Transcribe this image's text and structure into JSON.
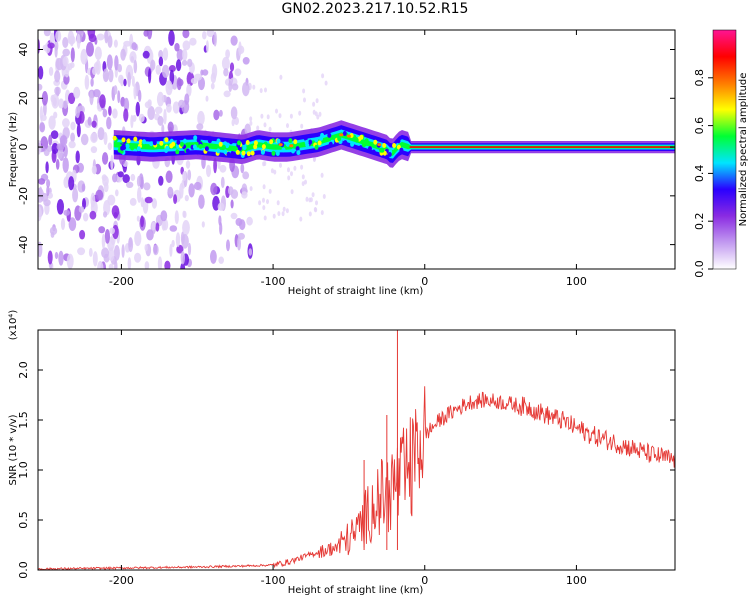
{
  "title": "GN02.2023.217.10.52.R15",
  "chart_data": [
    {
      "type": "heatmap",
      "xlabel": "Height of straight line (km)",
      "ylabel": "Frequency (Hz)",
      "xlim": [
        -255,
        165
      ],
      "ylim": [
        -50,
        48
      ],
      "xticks": [
        -200,
        -100,
        0,
        100
      ],
      "xtick_labels": [
        "-200",
        "-100",
        "0",
        "100"
      ],
      "yticks": [
        40,
        20,
        0,
        -20,
        -40
      ],
      "ytick_labels": [
        "40",
        "20",
        "0",
        "-20",
        "-40"
      ],
      "ridge": {
        "x": [
          -205,
          -180,
          -150,
          -120,
          -110,
          -100,
          -90,
          -80,
          -70,
          -60,
          -55,
          -50,
          -45,
          -40,
          -35,
          -30,
          -25,
          -22,
          -20,
          -18,
          -15,
          -10,
          0,
          50,
          100,
          165
        ],
        "y": [
          1,
          0,
          1,
          -1,
          1,
          0,
          0,
          1,
          2,
          4,
          5,
          4,
          3,
          2,
          1,
          0,
          -1,
          -3,
          -2,
          0,
          1,
          0,
          0,
          0,
          0,
          0
        ]
      },
      "noise_region_x": [
        -255,
        -115
      ],
      "colorbar": {
        "label": "Normalized spectral amplitude",
        "range": [
          0,
          1
        ],
        "ticks": [
          0,
          0.2,
          0.4,
          0.6,
          0.8
        ],
        "tick_labels": [
          "0.0",
          "0.2",
          "0.4",
          "0.6",
          "0.8"
        ],
        "colors": [
          "#ffffff",
          "#c29af0",
          "#8a2be2",
          "#2a00ff",
          "#00e5ff",
          "#00ff33",
          "#ffff00",
          "#ff7a00",
          "#ff0000",
          "#ff1493"
        ]
      },
      "grid": false
    },
    {
      "type": "line",
      "xlabel": "Height of straight line (km)",
      "ylabel": "SNR (10 * v/v)",
      "y_multiplier_label": "(x10⁴)",
      "xlim": [
        -255,
        165
      ],
      "ylim": [
        0,
        2.4
      ],
      "xticks": [
        -200,
        -100,
        0,
        100
      ],
      "xtick_labels": [
        "-200",
        "-100",
        "0",
        "100"
      ],
      "yticks": [
        0,
        0.5,
        1.0,
        1.5,
        2.0
      ],
      "ytick_labels": [
        "0.0",
        "0.5",
        "1.0",
        "1.5",
        "2.0"
      ],
      "color": "#e53935",
      "series": [
        {
          "x": [
            -255,
            -200,
            -150,
            -120,
            -100,
            -90,
            -80,
            -70,
            -60,
            -55,
            -50,
            -45,
            -40,
            -35,
            -30,
            -25,
            -20,
            -15,
            -10,
            -5,
            0,
            10,
            20,
            30,
            40,
            50,
            60,
            70,
            80,
            90,
            100,
            110,
            120,
            130,
            140,
            150,
            165
          ],
          "values": [
            0.01,
            0.02,
            0.03,
            0.04,
            0.05,
            0.08,
            0.13,
            0.18,
            0.22,
            0.3,
            0.35,
            0.42,
            0.55,
            0.7,
            0.78,
            0.85,
            0.95,
            1.0,
            1.1,
            1.2,
            1.35,
            1.5,
            1.6,
            1.68,
            1.7,
            1.68,
            1.65,
            1.62,
            1.55,
            1.5,
            1.42,
            1.35,
            1.3,
            1.25,
            1.2,
            1.15,
            1.1
          ]
        }
      ],
      "spikes": [
        {
          "x": -18,
          "y": 2.4
        },
        {
          "x": -25,
          "y": 1.55
        },
        {
          "x": -40,
          "y": 1.1
        }
      ],
      "grid": false
    }
  ]
}
